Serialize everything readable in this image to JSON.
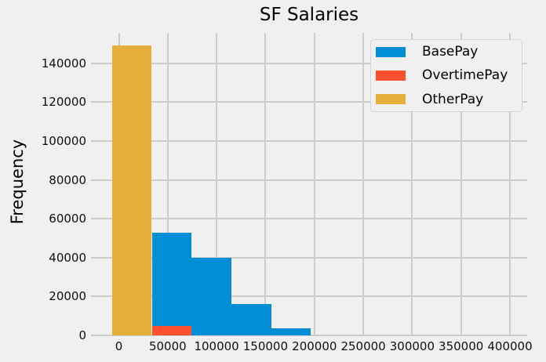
{
  "chart_data": {
    "type": "histogram",
    "title": "SF Salaries",
    "xlabel": "",
    "ylabel": "Frequency",
    "background_color": "#f0f0f0",
    "grid_color": "#cccccc",
    "grid": true,
    "legend_position": "upper right",
    "legend_bg": "#f0f0f0",
    "x_ticks": [
      0,
      50000,
      100000,
      150000,
      200000,
      250000,
      300000,
      350000,
      400000
    ],
    "y_ticks": [
      0,
      20000,
      40000,
      60000,
      80000,
      100000,
      120000,
      140000
    ],
    "xlim": [
      -28500,
      417700
    ],
    "ylim": [
      0,
      155600
    ],
    "bin_width": 40700,
    "series": [
      {
        "name": "BasePay",
        "color": "#008fd5",
        "bars": [
          {
            "x0": 33700,
            "x1": 74400,
            "count": 52900
          },
          {
            "x0": 74400,
            "x1": 115100,
            "count": 40000
          },
          {
            "x0": 115100,
            "x1": 155900,
            "count": 16000
          },
          {
            "x0": 155900,
            "x1": 196600,
            "count": 3500
          }
        ]
      },
      {
        "name": "OvertimePay",
        "color": "#fc4f30",
        "bars": [
          {
            "x0": 33700,
            "x1": 74400,
            "count": 5000
          }
        ]
      },
      {
        "name": "OtherPay",
        "color": "#e5ae38",
        "bars": [
          {
            "x0": -7100,
            "x1": 33700,
            "count": 149000
          }
        ]
      }
    ]
  }
}
